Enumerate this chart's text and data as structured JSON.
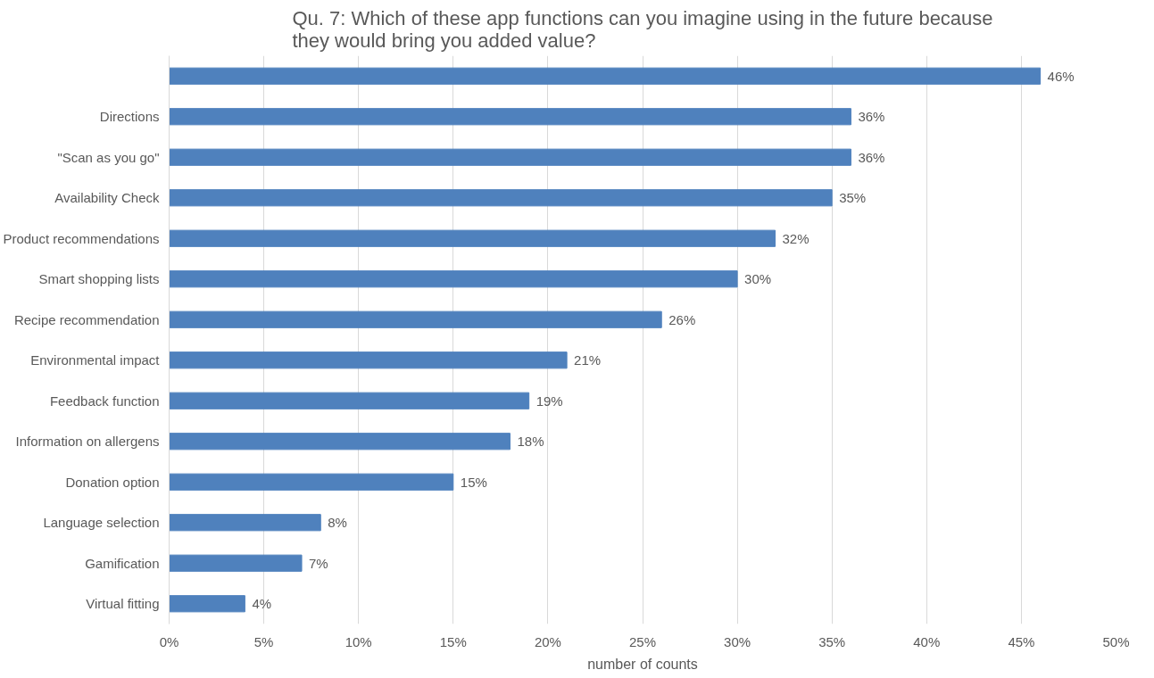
{
  "chart_data": {
    "type": "bar",
    "orientation": "horizontal",
    "title": "Qu. 7: Which of these app functions can you imagine using in the future because they would bring you added value?",
    "xlabel": "number of counts",
    "categories": [
      null,
      "Directions",
      "\"Scan as you go\"",
      "Availability Check",
      "Product recommendations",
      "Smart shopping lists",
      "Recipe recommendation",
      "Environmental impact",
      "Feedback function",
      "Information on allergens",
      "Donation option",
      "Language selection",
      "Gamification",
      "Virtual fitting"
    ],
    "values": [
      46,
      36,
      36,
      35,
      32,
      30,
      26,
      21,
      19,
      18,
      15,
      8,
      7,
      4
    ],
    "value_labels": [
      "46%",
      "36%",
      "36%",
      "35%",
      "32%",
      "30%",
      "26%",
      "21%",
      "19%",
      "18%",
      "15%",
      "8%",
      "7%",
      "4%"
    ],
    "color": "#4f81bd",
    "xlim": [
      0,
      50
    ],
    "xticks": [
      {
        "value": 0,
        "label": "0%"
      },
      {
        "value": 5,
        "label": "5%"
      },
      {
        "value": 10,
        "label": "10%"
      },
      {
        "value": 15,
        "label": "15%"
      },
      {
        "value": 20,
        "label": "20%"
      },
      {
        "value": 25,
        "label": "25%"
      },
      {
        "value": 30,
        "label": "30%"
      },
      {
        "value": 35,
        "label": "35%"
      },
      {
        "value": 40,
        "label": "40%"
      },
      {
        "value": 45,
        "label": "45%"
      },
      {
        "value": 50,
        "label": "50%"
      }
    ],
    "grid": "x"
  }
}
